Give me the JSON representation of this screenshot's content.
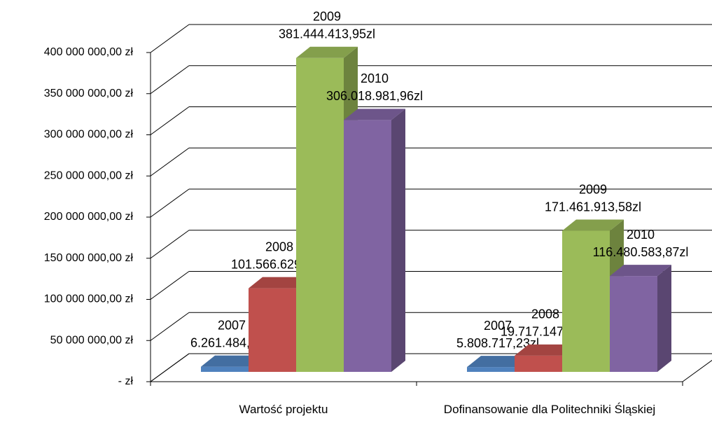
{
  "chart_data": {
    "type": "bar3d",
    "categories": [
      "Wartość projektu",
      "Dofinansowanie dla Politechniki Śląskiej"
    ],
    "series": [
      {
        "name": "2007",
        "color": "#4f81bd",
        "values": [
          6261484.6,
          5808717.23
        ],
        "value_labels": [
          "6.261.484,60zl",
          "5.808.717,23zl"
        ]
      },
      {
        "name": "2008",
        "color": "#c0504d",
        "values": [
          101566629.07,
          19717147.07
        ],
        "value_labels": [
          "101.566.629,07zl",
          "19.717.147,07zl"
        ]
      },
      {
        "name": "2009",
        "color": "#9bbb59",
        "values": [
          381444413.95,
          171461913.58
        ],
        "value_labels": [
          "381.444.413,95zl",
          "171.461.913,58zl"
        ]
      },
      {
        "name": "2010",
        "color": "#8064a2",
        "values": [
          306018981.96,
          116480583.87
        ],
        "value_labels": [
          "306.018.981,96zl",
          "116.480.583,87zl"
        ]
      }
    ],
    "ylim": [
      0,
      400000000
    ],
    "yticks": [
      {
        "value": 0,
        "label": "-   zł"
      },
      {
        "value": 50000000,
        "label": "50 000 000,00 zł"
      },
      {
        "value": 100000000,
        "label": "100 000 000,00 zł"
      },
      {
        "value": 150000000,
        "label": "150 000 000,00 zł"
      },
      {
        "value": 200000000,
        "label": "200 000 000,00 zł"
      },
      {
        "value": 250000000,
        "label": "250 000 000,00 zł"
      },
      {
        "value": 300000000,
        "label": "300 000 000,00 zł"
      },
      {
        "value": 350000000,
        "label": "350 000 000,00 zł"
      },
      {
        "value": 400000000,
        "label": "400 000 000,00 zł"
      }
    ],
    "grid": true
  }
}
